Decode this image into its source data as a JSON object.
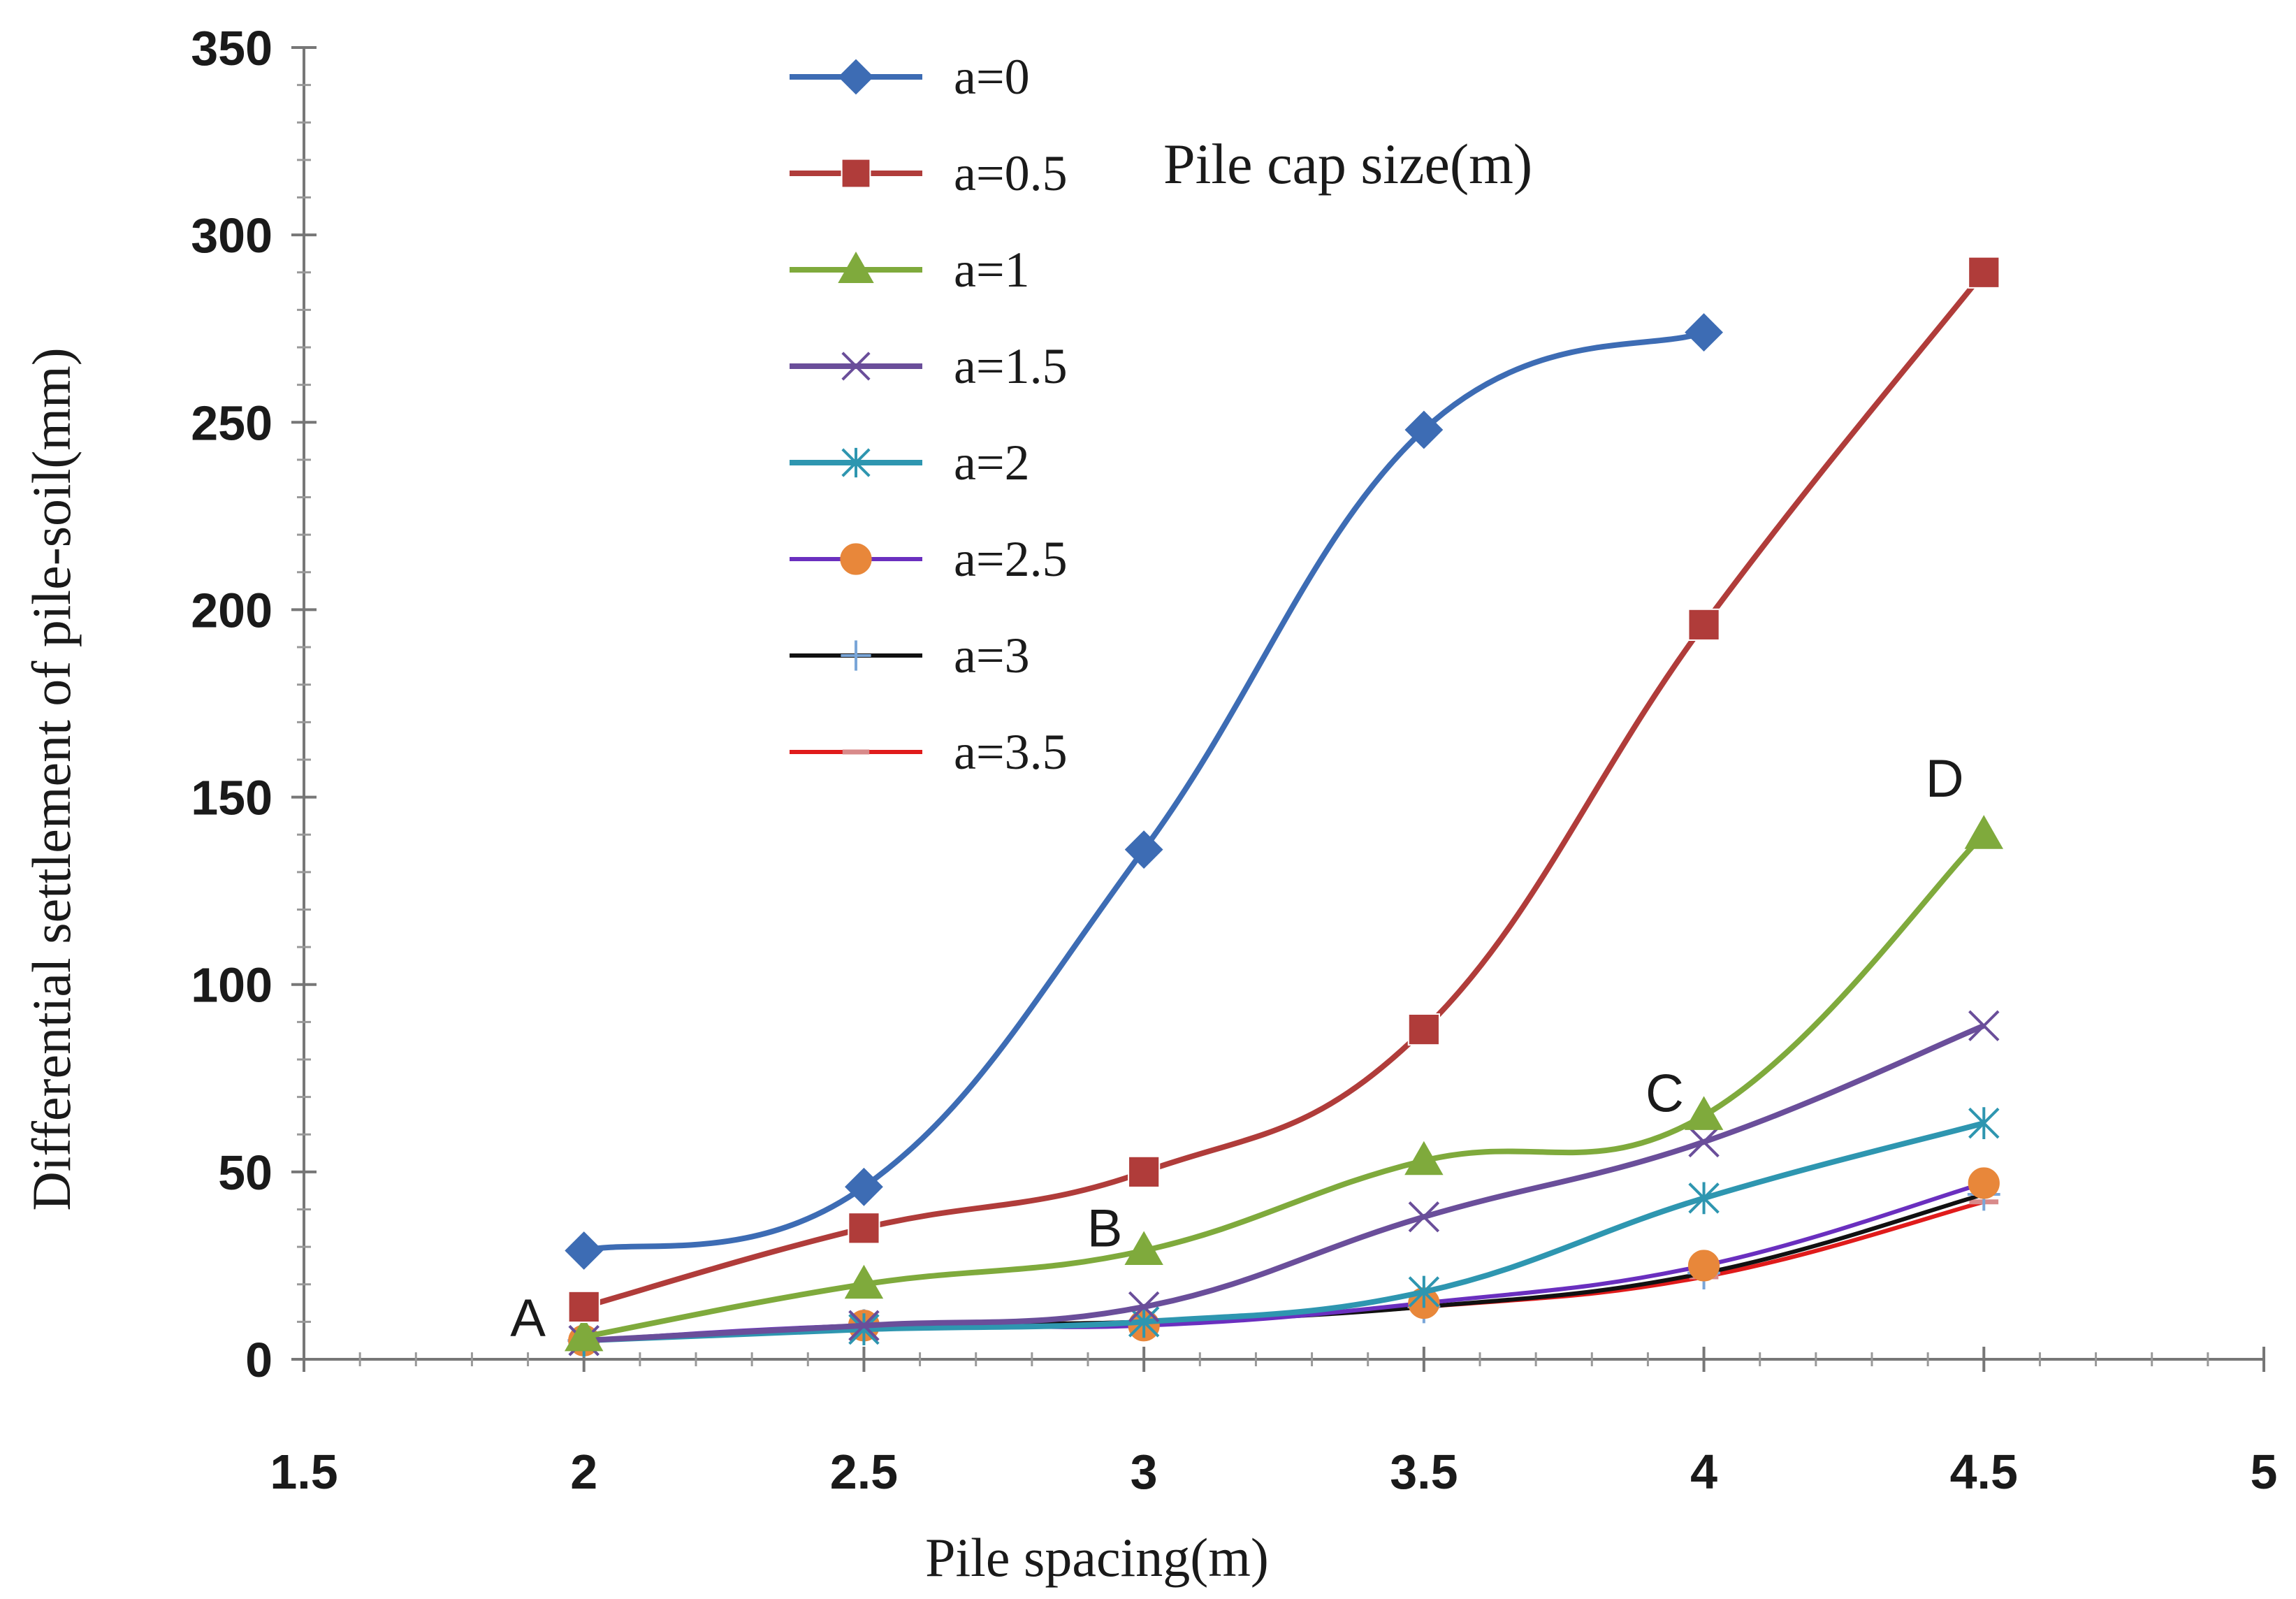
{
  "chart_data": {
    "type": "line",
    "title": "",
    "xlabel": "Pile spacing(m)",
    "ylabel": "Differential settlement of pile-soil(mm)",
    "xlim": [
      1.5,
      5
    ],
    "ylim": [
      0,
      350
    ],
    "x_ticks": [
      "1.5",
      "2",
      "2.5",
      "3",
      "3.5",
      "4",
      "4.5",
      "5"
    ],
    "y_ticks": [
      "0",
      "50",
      "100",
      "150",
      "200",
      "250",
      "300",
      "350"
    ],
    "legend_title": "Pile cap size(m)",
    "legend_position": "top-center",
    "series": [
      {
        "name": "a=0",
        "color": "#3d6cb4",
        "marker": "diamond",
        "x": [
          2,
          2.5,
          3,
          3.5,
          4
        ],
        "values": [
          29,
          46,
          136,
          248,
          274
        ]
      },
      {
        "name": "a=0.5",
        "color": "#b03c3a",
        "marker": "square",
        "x": [
          2,
          2.5,
          3,
          3.5,
          4,
          4.5
        ],
        "values": [
          14,
          35,
          50,
          88,
          196,
          290
        ]
      },
      {
        "name": "a=1",
        "color": "#7faa3c",
        "marker": "triangle",
        "x": [
          2,
          2.5,
          3,
          3.5,
          4,
          4.5
        ],
        "values": [
          6,
          20,
          29,
          53,
          65,
          140
        ]
      },
      {
        "name": "a=1.5",
        "color": "#6a4e9a",
        "marker": "x",
        "x": [
          2,
          2.5,
          3,
          3.5,
          4,
          4.5
        ],
        "values": [
          5,
          9,
          14,
          38,
          58,
          89
        ]
      },
      {
        "name": "a=2",
        "color": "#2e96b0",
        "marker": "asterisk",
        "x": [
          2,
          2.5,
          3,
          3.5,
          4,
          4.5
        ],
        "values": [
          5,
          8,
          10,
          18,
          43,
          63
        ]
      },
      {
        "name": "a=2.5",
        "color": "#6a2fbf",
        "marker": "circle",
        "marker_color": "#e8873a",
        "x": [
          2,
          2.5,
          3,
          3.5,
          4,
          4.5
        ],
        "values": [
          5,
          9,
          9,
          15,
          25,
          47
        ]
      },
      {
        "name": "a=3",
        "color": "#111111",
        "marker": "plus",
        "marker_color": "#7aa6d8",
        "x": [
          2,
          2.5,
          3,
          3.5,
          4,
          4.5
        ],
        "values": [
          5,
          9,
          10,
          14,
          23,
          44
        ]
      },
      {
        "name": "a=3.5",
        "color": "#e01b1b",
        "marker": "dash",
        "marker_color": "#d88a8a",
        "x": [
          2,
          2.5,
          3,
          3.5,
          4,
          4.5
        ],
        "values": [
          5,
          9,
          10,
          14,
          22,
          42
        ]
      }
    ],
    "annotations": [
      {
        "text": "A",
        "x": 1.9,
        "y": 8
      },
      {
        "text": "B",
        "x": 2.93,
        "y": 32
      },
      {
        "text": "C",
        "x": 3.93,
        "y": 68
      },
      {
        "text": "D",
        "x": 4.43,
        "y": 152
      }
    ]
  }
}
